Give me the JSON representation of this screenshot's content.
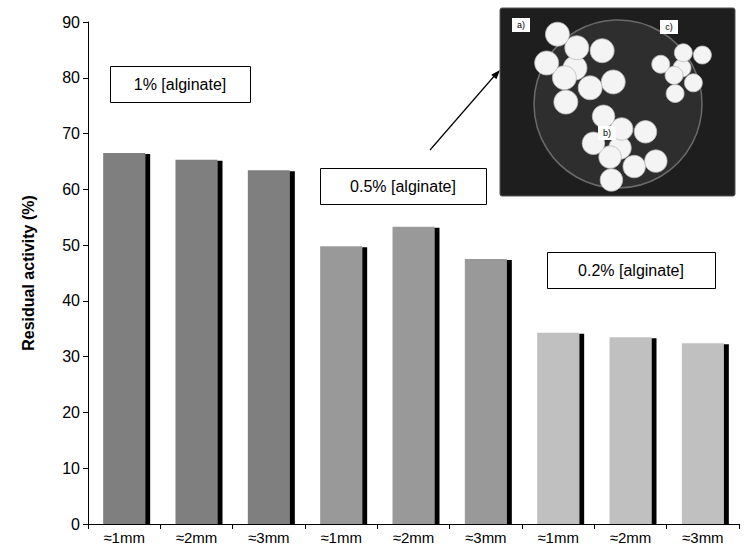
{
  "chart_data": {
    "type": "bar",
    "y_label": "Residual activity (%)",
    "categories": [
      "≈1mm",
      "≈2mm",
      "≈3mm",
      "≈1mm",
      "≈2mm",
      "≈3mm",
      "≈1mm",
      "≈2mm",
      "≈3mm"
    ],
    "values": [
      66.5,
      65.3,
      63.4,
      49.8,
      53.3,
      47.5,
      34.3,
      33.5,
      32.4
    ],
    "colors": [
      "#7f7f7f",
      "#7f7f7f",
      "#7f7f7f",
      "#999999",
      "#999999",
      "#999999",
      "#c0c0c0",
      "#c0c0c0",
      "#c0c0c0"
    ],
    "ylim": [
      0,
      90
    ],
    "yticks": [
      0,
      10,
      20,
      30,
      40,
      50,
      60,
      70,
      80,
      90
    ],
    "grid": false,
    "annotations": [
      "1% [alginate]",
      "0.5% [alginate]",
      "0.2% [alginate]"
    ],
    "inset_labels": [
      "a)",
      "b)",
      "c)"
    ]
  }
}
